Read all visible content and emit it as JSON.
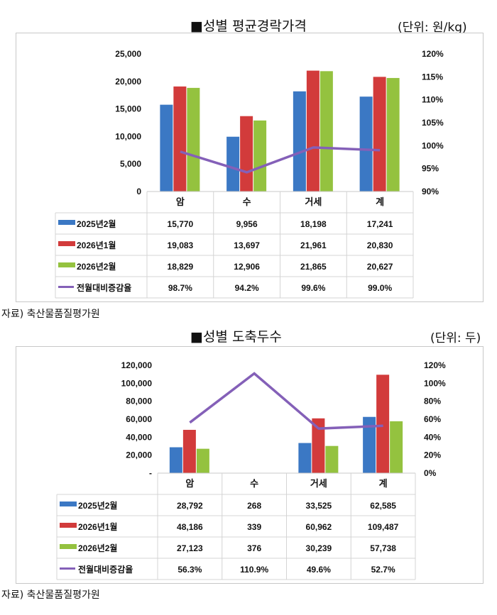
{
  "charts_meta": [
    {
      "title": "■성별 평균경락가격",
      "unit": "(단위: 원/kg)",
      "source": "자료) 축산물품질평가원"
    },
    {
      "title": "■성별 도축두수",
      "unit": "(단위: 두)",
      "source": "자료) 축산물품질평가원"
    }
  ],
  "chart_data": [
    {
      "type": "bar",
      "title": "■성별 평균경락가격",
      "categories": [
        "암",
        "수",
        "거세",
        "계"
      ],
      "series": [
        {
          "name": "2025년2월",
          "color": "#3b78c4",
          "values": [
            15770,
            9956,
            18198,
            17241
          ],
          "labels": [
            "15,770",
            "9,956",
            "18,198",
            "17,241"
          ]
        },
        {
          "name": "2026년1월",
          "color": "#d23b3b",
          "values": [
            19083,
            13697,
            21961,
            20830
          ],
          "labels": [
            "19,083",
            "13,697",
            "21,961",
            "20,830"
          ]
        },
        {
          "name": "2026년2월",
          "color": "#94c23f",
          "values": [
            18829,
            12906,
            21865,
            20627
          ],
          "labels": [
            "18,829",
            "12,906",
            "21,865",
            "20,627"
          ]
        }
      ],
      "line": {
        "name": "전월대비증감율",
        "color": "#8460b8",
        "values": [
          98.7,
          94.2,
          99.6,
          99.0
        ],
        "labels": [
          "98.7%",
          "94.2%",
          "99.6%",
          "99.0%"
        ]
      },
      "ylim": [
        0,
        25000
      ],
      "yticks": [
        "0",
        "5,000",
        "10,000",
        "15,000",
        "20,000",
        "25,000"
      ],
      "y2lim": [
        90,
        120
      ],
      "y2ticks": [
        "90%",
        "95%",
        "100%",
        "105%",
        "110%",
        "115%",
        "120%"
      ]
    },
    {
      "type": "bar",
      "title": "■성별 도축두수",
      "categories": [
        "암",
        "수",
        "거세",
        "계"
      ],
      "series": [
        {
          "name": "2025년2월",
          "color": "#3b78c4",
          "values": [
            28792,
            268,
            33525,
            62585
          ],
          "labels": [
            "28,792",
            "268",
            "33,525",
            "62,585"
          ]
        },
        {
          "name": "2026년1월",
          "color": "#d23b3b",
          "values": [
            48186,
            339,
            60962,
            109487
          ],
          "labels": [
            "48,186",
            "339",
            "60,962",
            "109,487"
          ]
        },
        {
          "name": "2026년2월",
          "color": "#94c23f",
          "values": [
            27123,
            376,
            30239,
            57738
          ],
          "labels": [
            "27,123",
            "376",
            "30,239",
            "57,738"
          ]
        }
      ],
      "line": {
        "name": "전월대비증감율",
        "color": "#8460b8",
        "values": [
          56.3,
          110.9,
          49.6,
          52.7
        ],
        "labels": [
          "56.3%",
          "110.9%",
          "49.6%",
          "52.7%"
        ]
      },
      "ylim": [
        0,
        120000
      ],
      "yticks": [
        "-",
        "20,000",
        "40,000",
        "60,000",
        "80,000",
        "100,000",
        "120,000"
      ],
      "y2lim": [
        0,
        120
      ],
      "y2ticks": [
        "0%",
        "20%",
        "40%",
        "60%",
        "80%",
        "100%",
        "120%"
      ]
    }
  ]
}
